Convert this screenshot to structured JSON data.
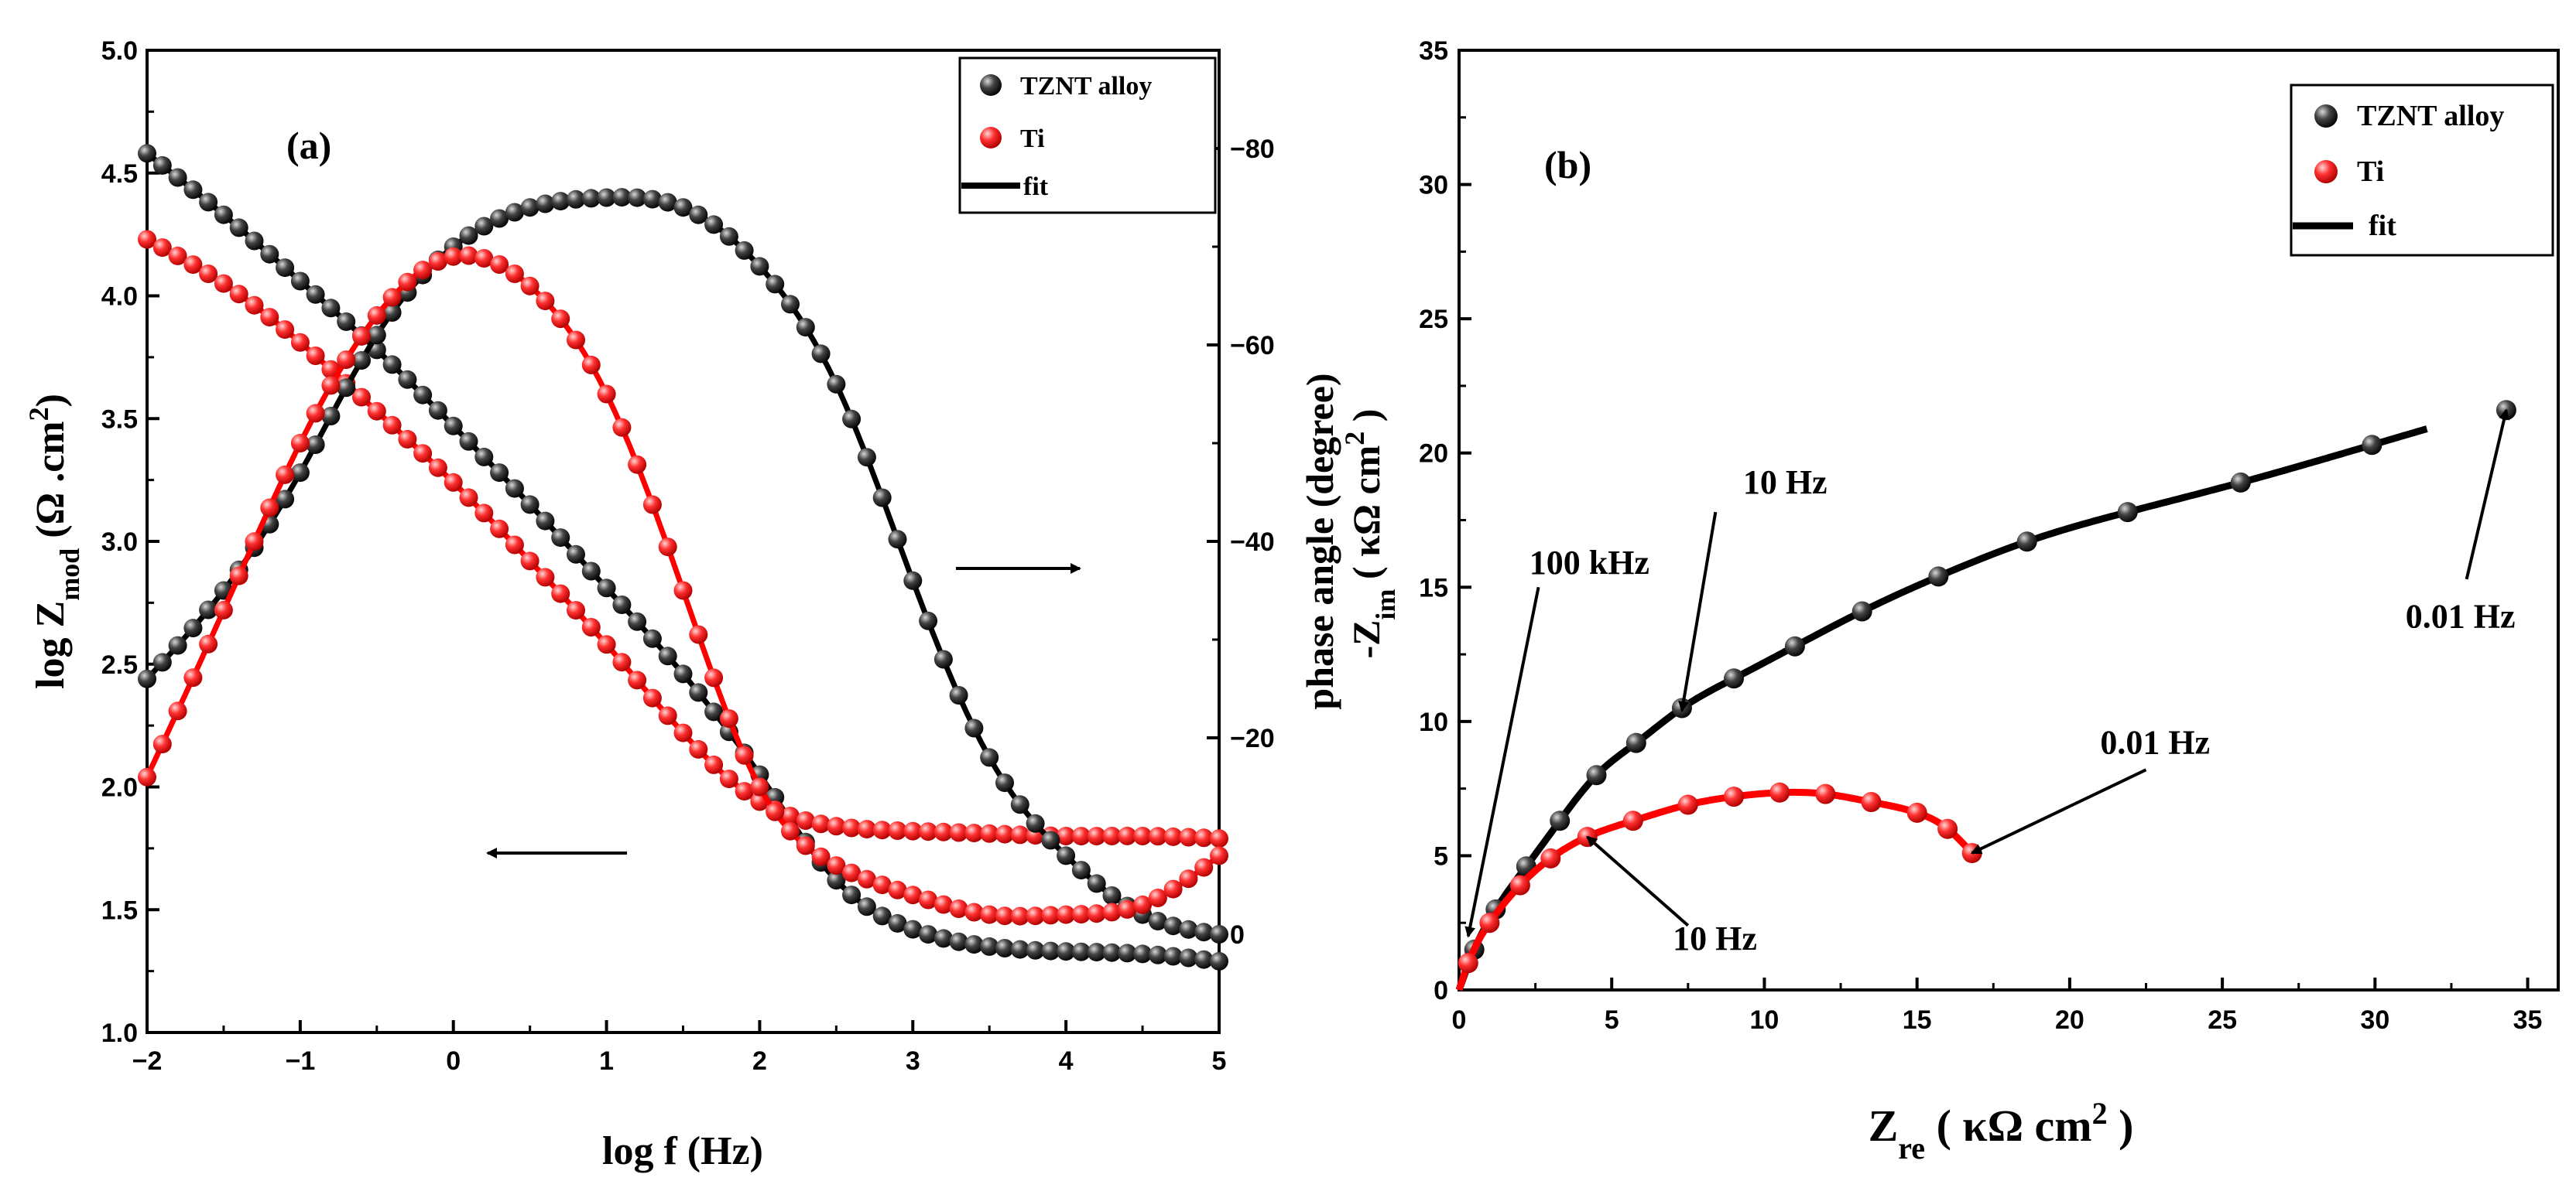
{
  "figure": {
    "panel_a_label": "(a)",
    "panel_b_label": "(b)"
  },
  "colors": {
    "tznt": "#111111",
    "ti": "#ee1111",
    "fit": "#000000",
    "ti_fit": "#ff0000"
  },
  "chart_data": [
    {
      "type": "scatter",
      "panel": "(a)",
      "title": "",
      "xlabel": "log f (Hz)",
      "ylabel_left": {
        "main": "log Z",
        "sub": "mod",
        "units_open": " (Ω .cm",
        "sup": "2",
        "units_close": ")"
      },
      "ylabel_right": "phase angle (degree)",
      "xlim": [
        -2,
        5
      ],
      "ylim_left": [
        1.0,
        5.0
      ],
      "ylim_right": [
        10,
        -90
      ],
      "xticks": [
        "-2",
        "-1",
        "0",
        "1",
        "2",
        "3",
        "4",
        "5"
      ],
      "yticks_left": [
        "1.0",
        "1.5",
        "2.0",
        "2.5",
        "3.0",
        "3.5",
        "4.0",
        "4.5",
        "5.0"
      ],
      "yticks_right": [
        "0",
        "-20",
        "-40",
        "-60",
        "-80"
      ],
      "legend": {
        "position": "top-right",
        "entries": [
          "TZNT alloy",
          "Ti",
          "fit"
        ]
      },
      "series": [
        {
          "name": "TZNT alloy",
          "quantity": "log Zmod",
          "axis": "left",
          "x": [
            -2.0,
            -1.5,
            -1.0,
            -0.5,
            0.0,
            0.5,
            1.0,
            1.5,
            2.0,
            2.5,
            3.0,
            3.5,
            4.0,
            4.5,
            5.0
          ],
          "values": [
            4.58,
            4.33,
            4.06,
            3.78,
            3.47,
            3.15,
            2.81,
            2.46,
            2.05,
            1.62,
            1.42,
            1.35,
            1.33,
            1.32,
            1.29
          ]
        },
        {
          "name": "Ti",
          "quantity": "log Zmod",
          "axis": "left",
          "x": [
            -2.0,
            -1.5,
            -1.0,
            -0.5,
            0.0,
            0.5,
            1.0,
            1.5,
            2.0,
            2.5,
            3.0,
            3.5,
            4.0,
            4.5,
            5.0
          ],
          "values": [
            4.23,
            4.05,
            3.81,
            3.53,
            3.24,
            2.92,
            2.58,
            2.22,
            1.94,
            1.84,
            1.82,
            1.81,
            1.8,
            1.8,
            1.79
          ]
        },
        {
          "name": "TZNT alloy",
          "quantity": "phase angle",
          "axis": "right",
          "x": [
            -2.0,
            -1.5,
            -1.0,
            -0.5,
            0.0,
            0.5,
            1.0,
            1.5,
            2.0,
            2.5,
            3.0,
            3.5,
            4.0,
            4.5,
            5.0
          ],
          "values": [
            -26,
            -35,
            -47,
            -61,
            -70,
            -74,
            -75,
            -74,
            -68,
            -56,
            -36,
            -18,
            -8,
            -2,
            0
          ]
        },
        {
          "name": "Ti",
          "quantity": "phase angle",
          "axis": "right",
          "x": [
            -2.0,
            -1.5,
            -1.0,
            -0.5,
            0.0,
            0.5,
            1.0,
            1.5,
            2.0,
            2.5,
            3.0,
            3.5,
            4.0,
            4.5,
            5.0
          ],
          "values": [
            -16,
            -33,
            -50,
            -63,
            -69,
            -66,
            -55,
            -35,
            -15,
            -7,
            -4,
            -2,
            -2,
            -3,
            -8
          ]
        }
      ],
      "annotations": [
        {
          "kind": "arrow",
          "direction": "right",
          "meaning": "phase-angle curves use right axis"
        },
        {
          "kind": "arrow",
          "direction": "left",
          "meaning": "log Zmod curves use left axis"
        }
      ]
    },
    {
      "type": "scatter",
      "panel": "(b)",
      "title": "",
      "xlabel": {
        "main": "Z",
        "sub": "re",
        "units_open": " ( κΩ  cm",
        "sup": "2",
        "units_close": " )"
      },
      "ylabel": {
        "main": "-Z",
        "sub": "im",
        "units_open": " ( κΩ cm",
        "sup": "2",
        "units_close": " )"
      },
      "xlim": [
        0,
        36
      ],
      "ylim": [
        0,
        35
      ],
      "xticks": [
        "0",
        "5",
        "10",
        "15",
        "20",
        "25",
        "30",
        "35"
      ],
      "yticks": [
        "0",
        "5",
        "10",
        "15",
        "20",
        "25",
        "30",
        "35"
      ],
      "legend": {
        "position": "top-right",
        "entries": [
          "TZNT alloy",
          "Ti",
          "fit"
        ]
      },
      "series": [
        {
          "name": "TZNT alloy",
          "x": [
            0.5,
            1.2,
            2.2,
            3.3,
            4.5,
            5.8,
            7.3,
            9.0,
            11.0,
            13.2,
            15.7,
            18.6,
            21.9,
            25.6,
            29.9,
            34.3
          ],
          "values": [
            1.5,
            3.0,
            4.6,
            6.3,
            8.0,
            9.2,
            10.5,
            11.6,
            12.8,
            14.1,
            15.4,
            16.7,
            17.8,
            18.9,
            20.3,
            21.6
          ]
        },
        {
          "name": "Ti",
          "x": [
            0.3,
            1.0,
            2.0,
            3.0,
            4.2,
            5.7,
            7.5,
            9.0,
            10.5,
            12.0,
            13.5,
            15.0,
            16.0,
            16.8
          ],
          "values": [
            1.0,
            2.5,
            3.9,
            4.9,
            5.7,
            6.3,
            6.9,
            7.2,
            7.35,
            7.3,
            7.0,
            6.6,
            6.0,
            5.1
          ]
        }
      ],
      "annotations": [
        {
          "text": "100 kHz",
          "points_to": [
            0.3,
            2.0
          ]
        },
        {
          "text": "10 Hz",
          "points_to": [
            7.3,
            10.4
          ],
          "series": "TZNT alloy"
        },
        {
          "text": "0.01 Hz",
          "points_to": [
            34.3,
            21.6
          ],
          "series": "TZNT alloy"
        },
        {
          "text": "0.01 Hz",
          "points_to": [
            16.8,
            5.1
          ],
          "series": "Ti"
        },
        {
          "text": "10 Hz",
          "points_to": [
            4.2,
            5.7
          ],
          "series": "Ti"
        }
      ]
    }
  ]
}
